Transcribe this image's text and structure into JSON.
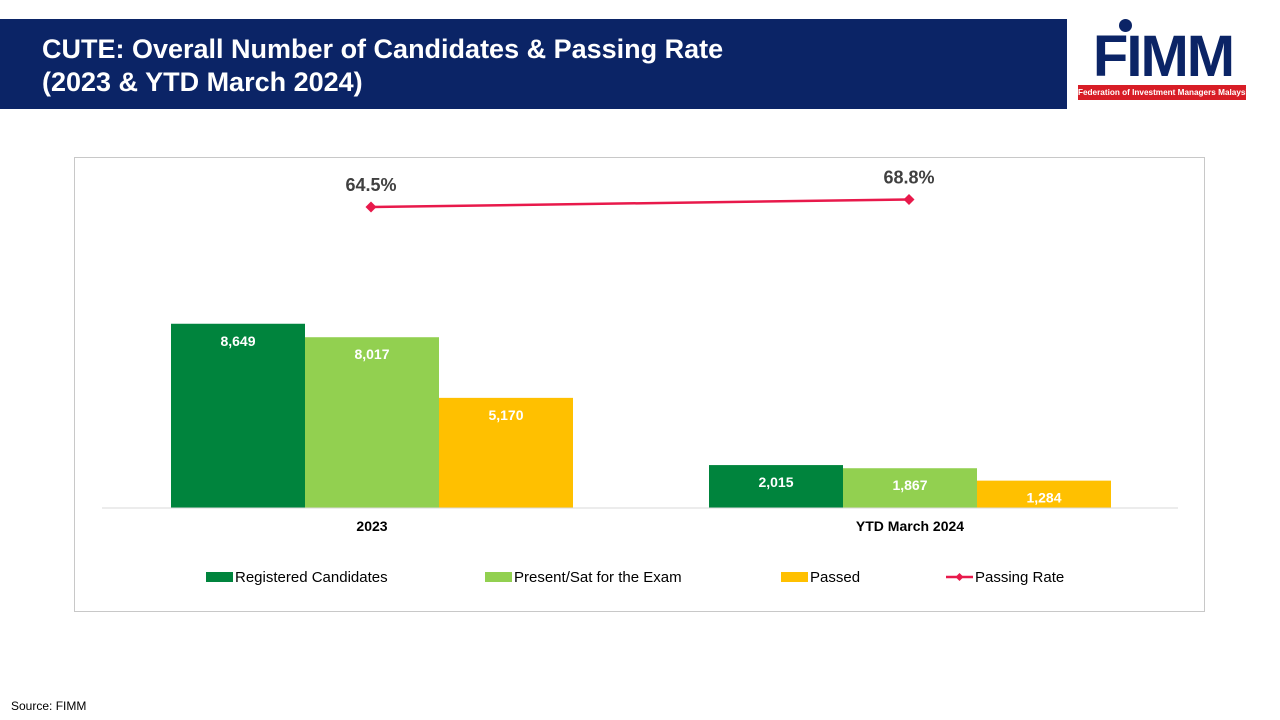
{
  "header": {
    "title_line1": "CUTE: Overall Number of Candidates & Passing Rate",
    "title_line2": "(2023 & YTD March 2024)"
  },
  "logo": {
    "name": "FIMM",
    "tagline": "Federation of Investment Managers Malaysia"
  },
  "footer": {
    "source": "Source: FIMM"
  },
  "colors": {
    "header_bg": "#0b2466",
    "registered": "#00843d",
    "present": "#92d050",
    "passed": "#ffc000",
    "passing_rate": "#e8194b"
  },
  "chart_data": {
    "type": "bar",
    "categories": [
      "2023",
      "YTD March 2024"
    ],
    "series": [
      {
        "name": "Registered Candidates",
        "kind": "bar",
        "color": "#00843d",
        "values": [
          8649,
          2015
        ],
        "labels": [
          "8,649",
          "2,015"
        ]
      },
      {
        "name": "Present/Sat for the Exam",
        "kind": "bar",
        "color": "#92d050",
        "values": [
          8017,
          1867
        ],
        "labels": [
          "8,017",
          "1,867"
        ]
      },
      {
        "name": "Passed",
        "kind": "bar",
        "color": "#ffc000",
        "values": [
          5170,
          1284
        ],
        "labels": [
          "5,170",
          "1,284"
        ]
      },
      {
        "name": "Passing Rate",
        "kind": "line",
        "color": "#e8194b",
        "values": [
          64.5,
          68.8
        ],
        "labels": [
          "64.5%",
          "68.8%"
        ]
      }
    ],
    "legend_position": "bottom",
    "grid": false
  }
}
